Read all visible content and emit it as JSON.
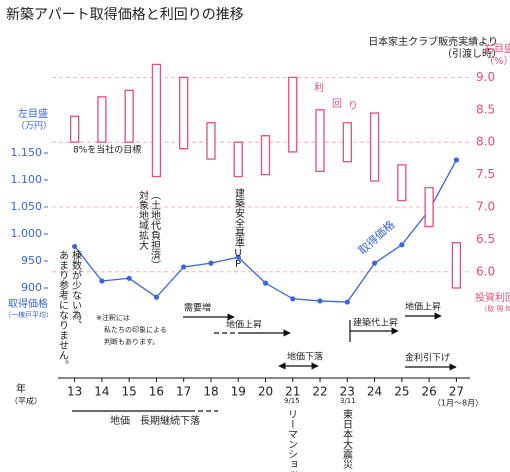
{
  "chart_data": {
    "type": "line",
    "title": "新築アパート取得価格と利回りの推移",
    "source": [
      "日本家主クラブ販売実績より",
      "（引渡し時）"
    ],
    "x_label": [
      "年",
      "（平成）"
    ],
    "x_note": "（1月～8月）",
    "y_label": [
      "左目盛",
      "（万円）"
    ],
    "y_label_bottom": [
      "取得価格",
      "（一棟戸平均）"
    ],
    "y2_label": [
      "右目盛",
      "（%）"
    ],
    "y2_note": "（取 得 時）",
    "categories": [
      "13",
      "14",
      "15",
      "16",
      "17",
      "18",
      "19",
      "20",
      "21",
      "22",
      "23",
      "24",
      "25",
      "26",
      "27"
    ],
    "series": [
      {
        "name": "取得価格",
        "color": "#3a66d8",
        "values": [
          977,
          913,
          918,
          883,
          939,
          946,
          957,
          909,
          880,
          876,
          874,
          946,
          980,
          1044,
          1137
        ]
      },
      {
        "name": "投資利回り",
        "color": "#e2507c",
        "axis": "y2",
        "low": [
          8.0,
          8.0,
          8.0,
          7.47,
          7.9,
          7.74,
          7.47,
          7.5,
          7.85,
          7.55,
          7.7,
          7.4,
          7.1,
          6.7,
          5.75
        ],
        "high": [
          8.4,
          8.7,
          8.8,
          9.2,
          9.0,
          8.3,
          8.0,
          8.1,
          9.0,
          8.5,
          8.3,
          8.45,
          7.65,
          7.3,
          6.45
        ]
      }
    ],
    "ylim": [
      750,
      1350
    ],
    "yticks": [
      900,
      950,
      {
        "value": 1000,
        "label": "1.000"
      },
      {
        "value": 1050,
        "label": "1.050"
      },
      {
        "value": 1100,
        "label": "1.100"
      },
      {
        "value": 1150,
        "label": "1.150"
      }
    ],
    "y2lim": [
      4.5,
      9.5
    ],
    "y2ticks": [
      {
        "value": 6,
        "label": "6.0"
      },
      6.5,
      {
        "value": 7,
        "label": "7.0"
      },
      7.5,
      {
        "value": 8,
        "label": "8.0"
      },
      8.5,
      {
        "value": 9,
        "label": "9.0"
      }
    ],
    "annotations": [
      "8%を当社の目標",
      "対象地域拡大",
      "（土地代負担済）",
      "建築安全基準UP",
      "棟数が少ない為、",
      "あまり参考になりません。",
      "※注釈には",
      "私たちの印象による",
      "判断もあります。",
      "需要増",
      "地価上昇",
      "地価下落",
      "建築代上昇",
      "地価上昇",
      "金利引下げ",
      "利",
      "回",
      "り",
      "9/15",
      "リーマンショック",
      "3/11",
      "東日本大震災",
      "地価　長期継続下落"
    ]
  }
}
